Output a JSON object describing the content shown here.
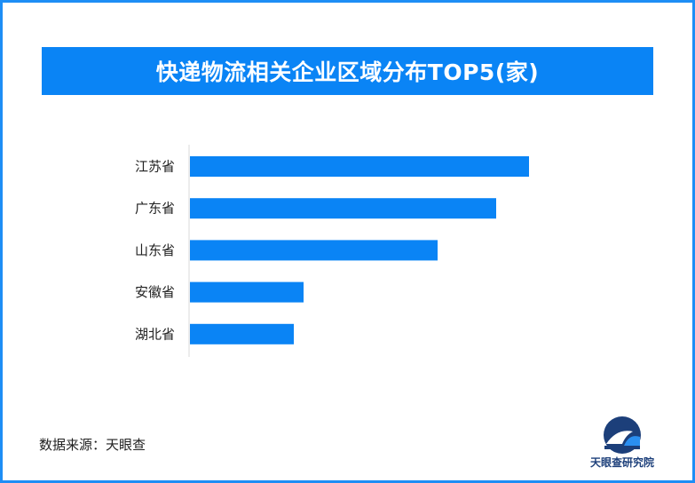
{
  "title": "快递物流相关企业区域分布TOP5(家)",
  "source": "数据来源：天眼查",
  "logo": {
    "text": "天眼查研究院",
    "icon": "tianyancha-logo-icon"
  },
  "colors": {
    "bar": "#0a84f5",
    "title_bg": "#0a84f5",
    "border": "#1e8ef5",
    "axis": "#d9d9d9"
  },
  "chart_data": {
    "type": "bar",
    "orientation": "horizontal",
    "categories": [
      "江苏省",
      "广东省",
      "山东省",
      "安徽省",
      "湖北省"
    ],
    "values": [
      382,
      345,
      279,
      128,
      117
    ],
    "xlim": [
      0,
      400
    ],
    "grid": false,
    "legend": "none"
  }
}
